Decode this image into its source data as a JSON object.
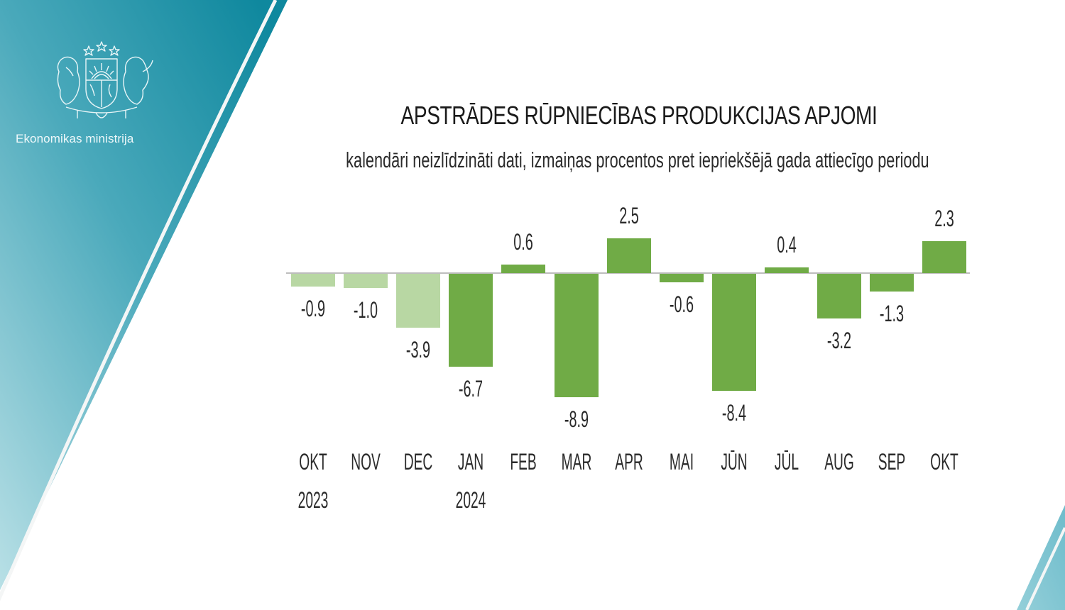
{
  "brand": {
    "ministry_name": "Ekonomikas ministrija",
    "logo_icon": "latvia-coat-of-arms-icon",
    "panel_color_top": "#128a9f",
    "panel_color_bottom": "#b5dde4"
  },
  "header": {
    "title": "APSTRĀDES RŪPNIECĪBAS PRODUKCIJAS APJOMI",
    "subtitle": "kalendāri neizlīdzināti dati, izmaiņas procentos pret iepriekšējā gada attiecīgo periodu"
  },
  "colors": {
    "bar_primary": "#70ab46",
    "bar_light": "#b8d7a3",
    "axis": "#bdbdbd",
    "text": "#2a2a2a"
  },
  "chart_data": {
    "type": "bar",
    "title": "APSTRĀDES RŪPNIECĪBAS PRODUKCIJAS APJOMI",
    "subtitle": "kalendāri neizlīdzināti dati, izmaiņas procentos pret iepriekšējā gada attiecīgo periodu",
    "xlabel": "",
    "ylabel": "",
    "categories": [
      "OKT",
      "NOV",
      "DEC",
      "JAN",
      "FEB",
      "MAR",
      "APR",
      "MAI",
      "JŪN",
      "JŪL",
      "AUG",
      "SEP",
      "OKT"
    ],
    "year_labels": [
      "2023",
      "",
      "",
      "2024",
      "",
      "",
      "",
      "",
      "",
      "",
      "",
      "",
      ""
    ],
    "values": [
      -0.9,
      -1.0,
      -3.9,
      -6.7,
      0.6,
      -8.9,
      2.5,
      -0.6,
      -8.4,
      0.4,
      -3.2,
      -1.3,
      2.3
    ],
    "value_labels": [
      "-0.9",
      "-1.0",
      "-3.9",
      "-6.7",
      "0.6",
      "-8.9",
      "2.5",
      "-0.6",
      "-8.4",
      "0.4",
      "-3.2",
      "-1.3",
      "2.3"
    ],
    "highlight": [
      false,
      false,
      false,
      true,
      true,
      true,
      true,
      true,
      true,
      true,
      true,
      true,
      true
    ],
    "grid": false,
    "legend": null,
    "ylim": [
      -9,
      3
    ]
  }
}
